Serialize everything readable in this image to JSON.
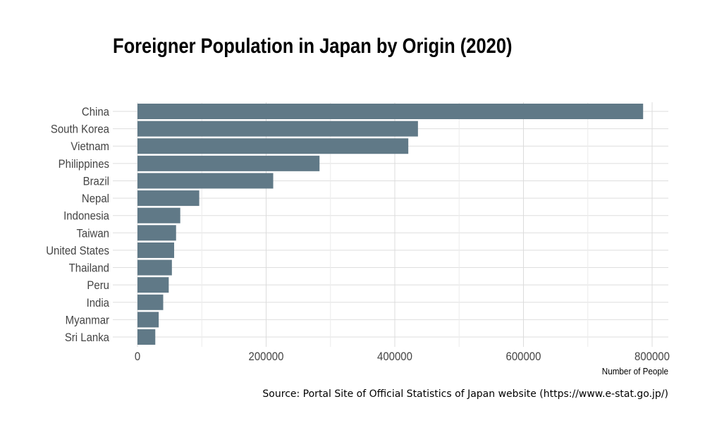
{
  "chart_data": {
    "type": "bar",
    "orientation": "horizontal",
    "title": "Foreigner Population in Japan by Origin (2020)",
    "xlabel": "Number of People",
    "ylabel": "",
    "caption": "Source: Portal Site of Official Statistics of Japan website (https://www.e-stat.go.jp/)",
    "categories": [
      "China",
      "South Korea",
      "Vietnam",
      "Philippines",
      "Brazil",
      "Nepal",
      "Indonesia",
      "Taiwan",
      "United States",
      "Thailand",
      "Peru",
      "India",
      "Myanmar",
      "Sri Lanka"
    ],
    "values": [
      786000,
      436000,
      421000,
      283000,
      211000,
      96000,
      66500,
      60000,
      57000,
      53500,
      48600,
      40000,
      33000,
      27700
    ],
    "xlim": [
      0,
      825000
    ],
    "xticks": [
      0,
      200000,
      400000,
      600000,
      800000
    ],
    "xtick_labels": [
      "0",
      "200000",
      "400000",
      "600000",
      "800000"
    ],
    "grid": true,
    "bar_color": "#607987"
  }
}
